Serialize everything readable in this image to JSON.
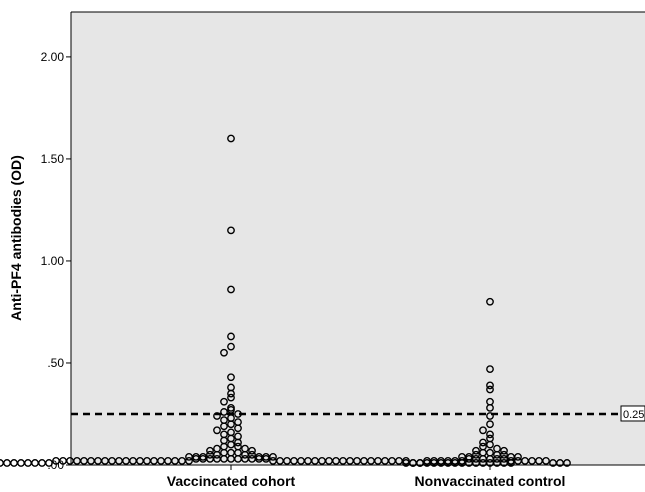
{
  "chart_data": {
    "type": "scatter",
    "title": "",
    "xlabel": "",
    "ylabel": "Anti-PF4 antibodies (OD)",
    "ylim": [
      0,
      2.0
    ],
    "yticks": [
      {
        "value": 0.0,
        "label": ".00"
      },
      {
        "value": 0.5,
        "label": ".50"
      },
      {
        "value": 1.0,
        "label": "1.00"
      },
      {
        "value": 1.5,
        "label": "1.50"
      },
      {
        "value": 2.0,
        "label": "2.00"
      }
    ],
    "categories": [
      "Vaccincated cohort",
      "Nonvaccinated control"
    ],
    "reference_line": {
      "value": 0.25,
      "label": "0.25",
      "style": "dashed"
    },
    "colors": {
      "plot_background": "#e6e6e6",
      "marker_stroke": "#000000",
      "reference_line": "#000000"
    },
    "series": [
      {
        "category": "Vaccincated cohort",
        "values": [
          1.6,
          1.15,
          0.86,
          0.63,
          0.58,
          0.55,
          0.43,
          0.38,
          0.35,
          0.33,
          0.31,
          0.28,
          0.27,
          0.26,
          0.25,
          0.24,
          0.23,
          0.22,
          0.21,
          0.2,
          0.19,
          0.18,
          0.17,
          0.16,
          0.15,
          0.14,
          0.13,
          0.12,
          0.11,
          0.1,
          0.09,
          0.09,
          0.08,
          0.08,
          0.07,
          0.07,
          0.06,
          0.06,
          0.06,
          0.05,
          0.05,
          0.05,
          0.05,
          0.04,
          0.04,
          0.04,
          0.04,
          0.04,
          0.04,
          0.03,
          0.03,
          0.03,
          0.03,
          0.03,
          0.03,
          0.03,
          0.03,
          0.03,
          0.03,
          0.03,
          0.02,
          0.02,
          0.02,
          0.02,
          0.02,
          0.02,
          0.02,
          0.02,
          0.02,
          0.02,
          0.02,
          0.02,
          0.02,
          0.02,
          0.02,
          0.02,
          0.02,
          0.02,
          0.02,
          0.02,
          0.02,
          0.02,
          0.02,
          0.02,
          0.02,
          0.02,
          0.02,
          0.02,
          0.02,
          0.02,
          0.02,
          0.02,
          0.02,
          0.02,
          0.02,
          0.02,
          0.02,
          0.02,
          0.02,
          0.02,
          0.01,
          0.01,
          0.01,
          0.01,
          0.01,
          0.01,
          0.01,
          0.01,
          0.01,
          0.01,
          0.01,
          0.01,
          0.01,
          0.01,
          0.01,
          0.01,
          0.01,
          0.01,
          0.01,
          0.01,
          0.01,
          0.01,
          0.01,
          0.01,
          0.01,
          0.01,
          0.01,
          0.01,
          0.01,
          0.01
        ]
      },
      {
        "category": "Nonvaccinated control",
        "values": [
          0.8,
          0.47,
          0.39,
          0.37,
          0.31,
          0.28,
          0.24,
          0.2,
          0.17,
          0.15,
          0.13,
          0.11,
          0.1,
          0.09,
          0.08,
          0.07,
          0.07,
          0.06,
          0.06,
          0.05,
          0.05,
          0.05,
          0.04,
          0.04,
          0.04,
          0.04,
          0.03,
          0.03,
          0.03,
          0.03,
          0.03,
          0.03,
          0.02,
          0.02,
          0.02,
          0.02,
          0.02,
          0.02,
          0.02,
          0.02,
          0.02,
          0.02,
          0.02,
          0.02,
          0.01,
          0.01,
          0.01,
          0.01,
          0.01,
          0.01
        ]
      }
    ]
  }
}
